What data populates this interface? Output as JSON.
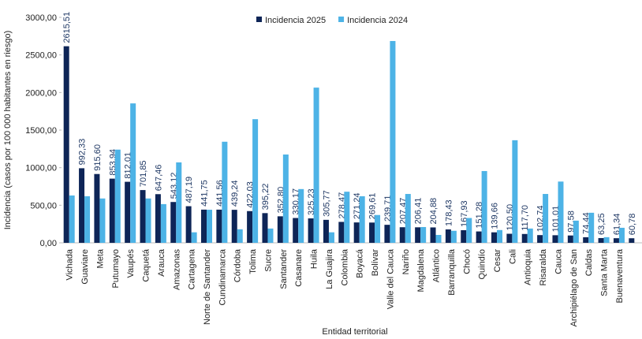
{
  "chart_data": {
    "type": "bar",
    "x_label": "Entidad territorial",
    "y_label": "Incidencia (casos por 100 000 habitantes en riesgo)",
    "categories": [
      "Vichada",
      "Guaviare",
      "Meta",
      "Putumayo",
      "Vaupés",
      "Caquetá",
      "Arauca",
      "Amazonas",
      "Cartagena",
      "Norte de Santander",
      "Cundinamarca",
      "Córdoba",
      "Tolima",
      "Sucre",
      "Santander",
      "Casanare",
      "Huila",
      "La Guajira",
      "Colombia",
      "Boyacá",
      "Bolívar",
      "Valle del Cauca",
      "Nariño",
      "Magdalena",
      "Atlántico",
      "Barranquilla",
      "Chocó",
      "Quindío",
      "Cesar",
      "Cali",
      "Antioquia",
      "Risaralda",
      "Cauca",
      "Archipiélago de San",
      "Caldas",
      "Santa Marta",
      "Buenaventura",
      null
    ],
    "series": [
      {
        "name": "Incidencia 2025",
        "color": "#0e2557",
        "values": [
          2615.51,
          992.33,
          915.6,
          853.94,
          812.01,
          701.85,
          647.46,
          543.12,
          487.19,
          441.75,
          441.56,
          439.24,
          422.03,
          395.22,
          352.8,
          330.17,
          325.23,
          305.77,
          278.47,
          271.24,
          269.61,
          239.71,
          207.47,
          206.41,
          204.88,
          178.43,
          167.93,
          151.28,
          139.66,
          120.5,
          117.7,
          102.74,
          101.01,
          97.58,
          74.44,
          63.25,
          61.34,
          60.78
        ],
        "value_labels": [
          "2615,51",
          "992,33",
          "915,60",
          "853,94",
          "812,01",
          "701,85",
          "647,46",
          "543,12",
          "487,19",
          "441,75",
          "441,56",
          "439,24",
          "422,03",
          "395,22",
          "352,80",
          "330,17",
          "325,23",
          "305,77",
          "278,47",
          "271,24",
          "269,61",
          "239,71",
          "207,47",
          "206,41",
          "204,88",
          "178,43",
          "167,93",
          "151,28",
          "139,66",
          "120,50",
          "117,70",
          "102,74",
          "101,01",
          "97,58",
          "74,44",
          "63,25",
          "61,34",
          "60,78"
        ]
      },
      {
        "name": "Incidencia 2024",
        "color": "#4db3e6",
        "values": [
          630,
          620,
          590,
          1240,
          1855,
          590,
          515,
          1070,
          140,
          440,
          1345,
          180,
          1645,
          190,
          1175,
          715,
          2065,
          140,
          680,
          620,
          370,
          2685,
          650,
          210,
          105,
          160,
          330,
          955,
          170,
          1365,
          190,
          650,
          815,
          295,
          400,
          75,
          200,
          null
        ]
      }
    ],
    "ylim": [
      0,
      3000
    ],
    "yticks": [
      {
        "value": 0,
        "label": "0,00"
      },
      {
        "value": 500,
        "label": "500,00"
      },
      {
        "value": 1000,
        "label": "1000,00"
      },
      {
        "value": 1500,
        "label": "1500,00"
      },
      {
        "value": 2000,
        "label": "2000,00"
      },
      {
        "value": 2500,
        "label": "2500,00"
      },
      {
        "value": 3000,
        "label": "3000,00"
      }
    ],
    "legend": "top"
  }
}
